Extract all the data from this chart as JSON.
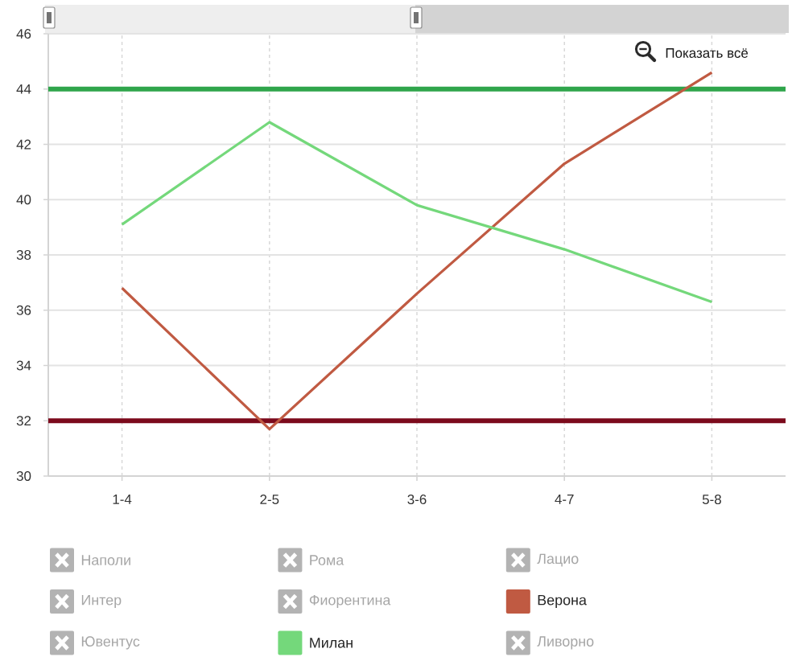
{
  "chart_data": {
    "type": "line",
    "categories": [
      "1-4",
      "2-5",
      "3-6",
      "4-7",
      "5-8"
    ],
    "series": [
      {
        "name": "Наполи",
        "color": "#b3b3b3",
        "values": [
          null,
          null,
          null,
          null,
          null
        ]
      },
      {
        "name": "Рома",
        "color": "#b3b3b3",
        "values": [
          null,
          null,
          null,
          null,
          null
        ]
      },
      {
        "name": "Лацио",
        "color": "#b3b3b3",
        "values": [
          null,
          null,
          null,
          null,
          null
        ]
      },
      {
        "name": "Интер",
        "color": "#b3b3b3",
        "values": [
          null,
          null,
          null,
          null,
          null
        ]
      },
      {
        "name": "Фиорентина",
        "color": "#b3b3b3",
        "values": [
          null,
          null,
          null,
          null,
          null
        ]
      },
      {
        "name": "Верона",
        "color": "#c05a42",
        "values": [
          36.8,
          31.7,
          36.6,
          41.3,
          44.6
        ]
      },
      {
        "name": "Ювентус",
        "color": "#b3b3b3",
        "values": [
          null,
          null,
          null,
          null,
          null
        ]
      },
      {
        "name": "Милан",
        "color": "#74d87b",
        "values": [
          39.1,
          42.8,
          39.8,
          38.2,
          36.3
        ]
      },
      {
        "name": "Ливорно",
        "color": "#b3b3b3",
        "values": [
          null,
          null,
          null,
          null,
          null
        ]
      }
    ],
    "ylim": [
      30,
      46
    ],
    "yticks": [
      30,
      32,
      34,
      36,
      38,
      40,
      42,
      44,
      46
    ],
    "ref_lines": [
      {
        "axis": "y",
        "value": 44,
        "color": "#2fa54b"
      },
      {
        "axis": "y",
        "value": 32,
        "color": "#7c0a1c"
      }
    ],
    "annotations": [
      "Показать всё"
    ],
    "grid": true,
    "legend": "bottom",
    "line_style": "solid"
  }
}
